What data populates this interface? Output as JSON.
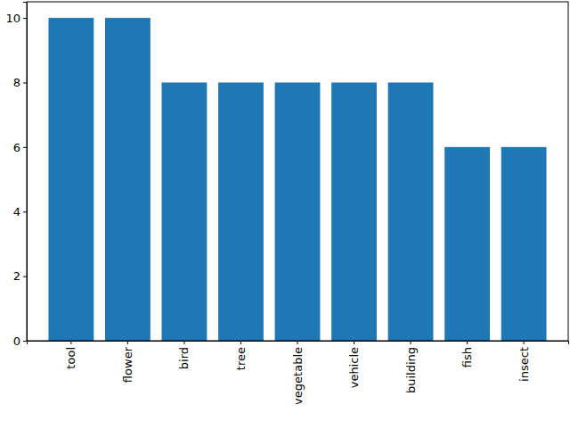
{
  "chart_data": {
    "type": "bar",
    "categories": [
      "tool",
      "flower",
      "bird",
      "tree",
      "vegetable",
      "vehicle",
      "building",
      "fish",
      "insect"
    ],
    "values": [
      10,
      10,
      8,
      8,
      8,
      8,
      8,
      6,
      6
    ],
    "color": "#1f77b4",
    "ylim": [
      0,
      10.5
    ],
    "yticks": [
      0,
      2,
      4,
      6,
      8,
      10
    ]
  }
}
